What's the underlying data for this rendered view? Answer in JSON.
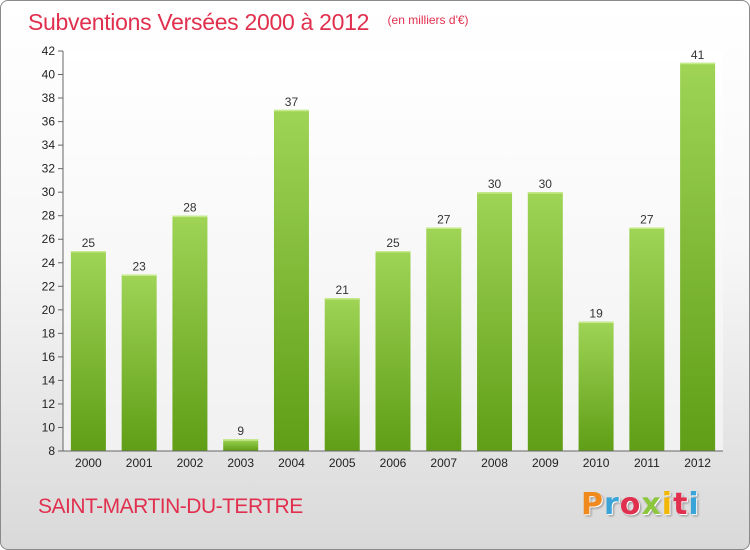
{
  "header": {
    "title": "Subventions Versées 2000 à 2012",
    "subtitle": "(en milliers d'€)"
  },
  "footer": {
    "commune": "SAINT-MARTIN-DU-TERTRE",
    "brand": "Proxiti",
    "brand_colors": [
      "#f08a1e",
      "#3aa4d8",
      "#e0304e",
      "#8cc63f",
      "#f2b705",
      "#e0304e",
      "#3aa4d8"
    ]
  },
  "colors": {
    "accent": "#e0304e",
    "bar_light": "#9fd456",
    "bar_dark": "#5f9e16"
  },
  "chart_data": {
    "type": "bar",
    "title": "Subventions Versées 2000 à 2012",
    "subtitle": "(en milliers d'€)",
    "xlabel": "",
    "ylabel": "",
    "categories": [
      "2000",
      "2001",
      "2002",
      "2003",
      "2004",
      "2005",
      "2006",
      "2007",
      "2008",
      "2009",
      "2010",
      "2011",
      "2012"
    ],
    "values": [
      25,
      23,
      28,
      9,
      37,
      21,
      25,
      27,
      30,
      30,
      19,
      27,
      41
    ],
    "data_labels": [
      "25",
      "23",
      "28",
      "9",
      "37",
      "21",
      "25",
      "27",
      "30",
      "30",
      "19",
      "27",
      "41"
    ],
    "ylim": [
      8,
      42
    ],
    "yticks": [
      8,
      10,
      12,
      14,
      16,
      18,
      20,
      22,
      24,
      26,
      28,
      30,
      32,
      34,
      36,
      38,
      40,
      42
    ],
    "ytick_labels": [
      "8",
      "10",
      "12",
      "14",
      "16",
      "18",
      "20",
      "22",
      "24",
      "26",
      "28",
      "30",
      "32",
      "34",
      "36",
      "38",
      "40",
      "42"
    ],
    "grid": false,
    "legend": "none"
  }
}
